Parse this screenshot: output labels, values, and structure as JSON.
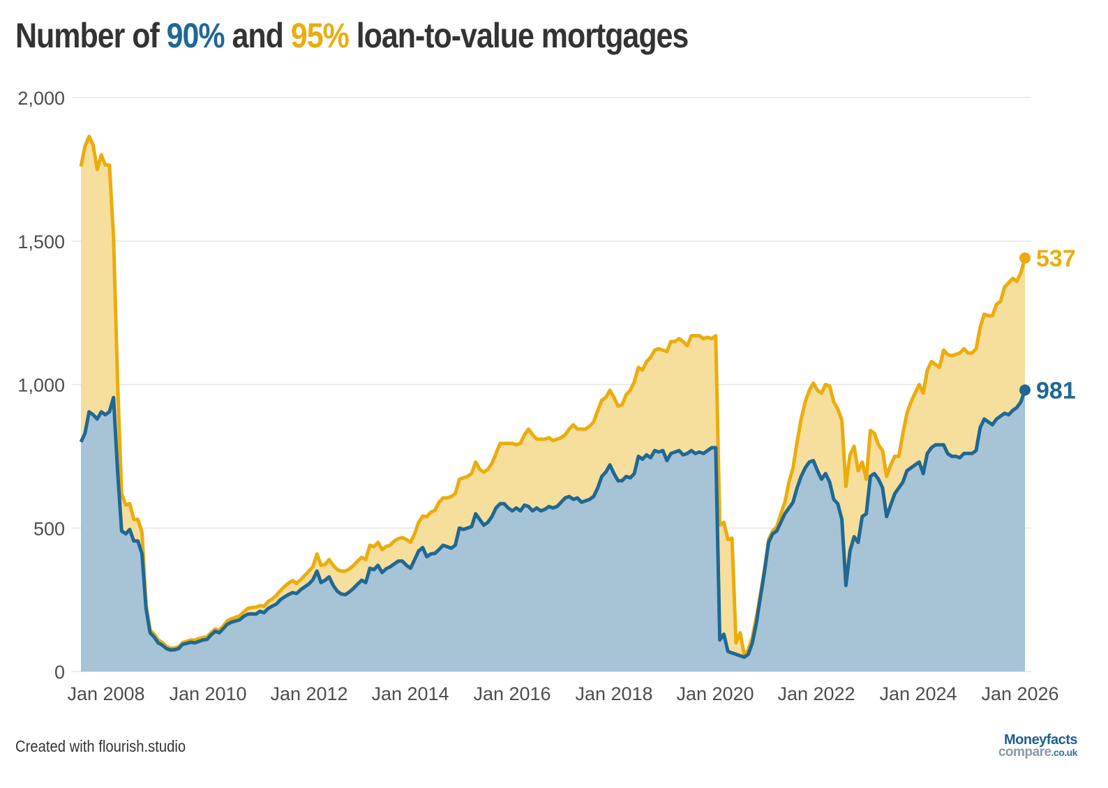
{
  "title": {
    "prefix": "Number of ",
    "pct90": "90%",
    "middle": " and ",
    "pct95": "95%",
    "suffix": " loan-to-value mortgages"
  },
  "footer": {
    "credit": "Created with flourish.studio"
  },
  "logo": {
    "line1": "Moneyfacts",
    "line2": "compare",
    "tld": ".co.uk"
  },
  "colors": {
    "ltv90_line": "#1f6894",
    "ltv90_fill": "#a7c3d6",
    "ltv95_line": "#ebac0d",
    "ltv95_fill": "#f6de9c",
    "grid": "#e6e6e6",
    "text": "#333333"
  },
  "chart_data": {
    "type": "area",
    "stacked": true,
    "title": "Number of 90% and 95% loan-to-value mortgages",
    "xlabel": "",
    "ylabel": "",
    "ylim": [
      0,
      2000
    ],
    "yticks": [
      0,
      500,
      1000,
      1500,
      2000
    ],
    "ytick_labels": [
      "0",
      "500",
      "1,000",
      "1,500",
      "2,000"
    ],
    "xtick_labels": [
      "Jan 2008",
      "Jan 2010",
      "Jan 2012",
      "Jan 2014",
      "Jan 2016",
      "Jan 2018",
      "Jan 2020",
      "Jan 2022",
      "Jan 2024",
      "Jan 2026"
    ],
    "grid": true,
    "legend": "none (title colour-coded, end labels)",
    "x_start": "Jul 2007",
    "x_end": "Feb 2026",
    "frequency": "monthly",
    "end_labels": {
      "ltv90": "981",
      "ltv95": "537"
    },
    "series": [
      {
        "name": "90% LTV",
        "values": [
          800,
          830,
          905,
          895,
          880,
          905,
          895,
          905,
          955,
          700,
          490,
          480,
          495,
          455,
          455,
          410,
          220,
          135,
          120,
          100,
          92,
          80,
          75,
          76,
          80,
          95,
          98,
          102,
          100,
          105,
          110,
          112,
          128,
          140,
          135,
          150,
          165,
          172,
          176,
          180,
          192,
          200,
          201,
          200,
          210,
          205,
          220,
          228,
          235,
          250,
          260,
          268,
          275,
          272,
          285,
          295,
          305,
          320,
          350,
          310,
          318,
          330,
          300,
          280,
          270,
          268,
          278,
          290,
          305,
          318,
          310,
          360,
          355,
          370,
          345,
          358,
          365,
          375,
          385,
          385,
          370,
          360,
          390,
          420,
          432,
          400,
          410,
          412,
          425,
          440,
          435,
          430,
          440,
          500,
          495,
          500,
          505,
          550,
          530,
          510,
          520,
          540,
          570,
          585,
          585,
          570,
          560,
          570,
          560,
          580,
          575,
          560,
          570,
          560,
          565,
          575,
          570,
          575,
          590,
          605,
          610,
          600,
          605,
          590,
          595,
          600,
          610,
          640,
          680,
          695,
          720,
          690,
          665,
          665,
          680,
          675,
          690,
          750,
          740,
          755,
          745,
          770,
          765,
          770,
          735,
          760,
          765,
          770,
          755,
          760,
          770,
          760,
          765,
          760,
          770,
          780,
          780,
          110,
          130,
          70,
          65,
          60,
          55,
          50,
          60,
          100,
          170,
          260,
          350,
          450,
          480,
          490,
          520,
          550,
          570,
          590,
          640,
          680,
          710,
          730,
          735,
          700,
          670,
          690,
          660,
          600,
          585,
          530,
          300,
          420,
          470,
          450,
          540,
          550,
          680,
          690,
          670,
          640,
          540,
          580,
          620,
          640,
          660,
          700,
          710,
          720,
          730,
          690,
          760,
          780,
          790,
          790,
          790,
          760,
          750,
          750,
          745,
          760,
          760,
          760,
          770,
          850,
          880,
          870,
          860,
          880,
          890,
          900,
          895,
          910,
          920,
          940,
          981
        ]
      },
      {
        "name": "95% LTV",
        "values": [
          960,
          1000,
          960,
          940,
          870,
          895,
          870,
          860,
          560,
          310,
          130,
          100,
          90,
          75,
          75,
          75,
          15,
          10,
          10,
          10,
          9,
          8,
          6,
          6,
          6,
          6,
          7,
          8,
          9,
          10,
          8,
          9,
          8,
          8,
          8,
          10,
          12,
          12,
          13,
          14,
          16,
          20,
          22,
          24,
          20,
          22,
          24,
          25,
          30,
          32,
          36,
          40,
          42,
          35,
          35,
          40,
          45,
          45,
          60,
          60,
          55,
          60,
          70,
          75,
          80,
          82,
          80,
          80,
          80,
          80,
          80,
          80,
          80,
          80,
          80,
          78,
          75,
          80,
          78,
          82,
          90,
          90,
          90,
          100,
          110,
          140,
          145,
          150,
          165,
          165,
          170,
          180,
          180,
          170,
          180,
          180,
          185,
          180,
          175,
          185,
          185,
          185,
          190,
          210,
          210,
          225,
          235,
          220,
          235,
          245,
          270,
          265,
          240,
          250,
          245,
          240,
          235,
          235,
          225,
          220,
          235,
          260,
          240,
          255,
          250,
          255,
          260,
          270,
          265,
          260,
          260,
          265,
          260,
          265,
          285,
          305,
          320,
          310,
          310,
          325,
          350,
          350,
          360,
          350,
          380,
          390,
          385,
          390,
          395,
          375,
          400,
          410,
          405,
          400,
          395,
          380,
          390,
          400,
          390,
          390,
          400,
          40,
          80,
          10,
          15,
          20,
          20,
          10,
          10,
          10,
          10,
          15,
          30,
          40,
          90,
          120,
          160,
          200,
          230,
          250,
          270,
          280,
          300,
          310,
          335,
          340,
          330,
          345,
          345,
          335,
          315,
          250,
          190,
          120,
          160,
          140,
          120,
          130,
          140,
          140,
          130,
          110,
          170,
          200,
          230,
          250,
          270,
          280,
          290,
          300,
          280,
          270,
          330,
          345,
          350,
          355,
          365,
          365,
          350,
          350,
          355,
          350,
          365,
          370,
          380,
          400,
          400,
          440,
          460,
          460,
          440,
          450,
          460,
          470,
          460,
          480,
          475,
          490,
          537
        ]
      }
    ]
  }
}
